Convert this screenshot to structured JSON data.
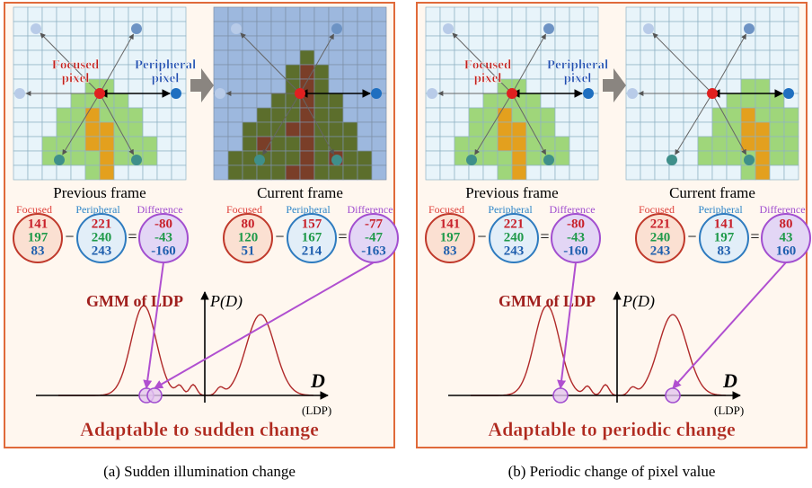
{
  "panels": [
    {
      "previous_frame": "Previous frame",
      "current_frame": "Current frame",
      "focused_pixel": [
        "Focused",
        "pixel"
      ],
      "peripheral_pixel": [
        "Peripheral",
        "pixel"
      ],
      "previous_triplets": [
        {
          "label": "Focused",
          "values": [
            141,
            197,
            83
          ]
        },
        {
          "label": "Peripheral",
          "values": [
            221,
            240,
            243
          ]
        },
        {
          "label": "Difference",
          "values": [
            -80,
            -43,
            -160
          ]
        }
      ],
      "current_triplets": [
        {
          "label": "Focused",
          "values": [
            80,
            120,
            51
          ]
        },
        {
          "label": "Peripheral",
          "values": [
            157,
            167,
            214
          ]
        },
        {
          "label": "Difference",
          "values": [
            -77,
            -47,
            -163
          ]
        }
      ],
      "gmm_label": "GMM of LDP",
      "y_axis_label": "P(D)",
      "x_axis_label": "D",
      "x_axis_unit": "(LDP)",
      "conclusion": "Adaptable to sudden change",
      "caption": "(a) Sudden illumination change"
    },
    {
      "previous_frame": "Previous frame",
      "current_frame": "Current frame",
      "focused_pixel": [
        "Focused",
        "pixel"
      ],
      "peripheral_pixel": [
        "Peripheral",
        "pixel"
      ],
      "previous_triplets": [
        {
          "label": "Focused",
          "values": [
            141,
            197,
            83
          ]
        },
        {
          "label": "Peripheral",
          "values": [
            221,
            240,
            243
          ]
        },
        {
          "label": "Difference",
          "values": [
            -80,
            -43,
            -160
          ]
        }
      ],
      "current_triplets": [
        {
          "label": "Focused",
          "values": [
            221,
            240,
            243
          ]
        },
        {
          "label": "Peripheral",
          "values": [
            141,
            197,
            83
          ]
        },
        {
          "label": "Difference",
          "values": [
            80,
            43,
            160
          ]
        }
      ],
      "gmm_label": "GMM of LDP",
      "y_axis_label": "P(D)",
      "x_axis_label": "D",
      "x_axis_unit": "(LDP)",
      "conclusion": "Adaptable to periodic change",
      "caption": "(b) Periodic change of pixel value"
    }
  ]
}
